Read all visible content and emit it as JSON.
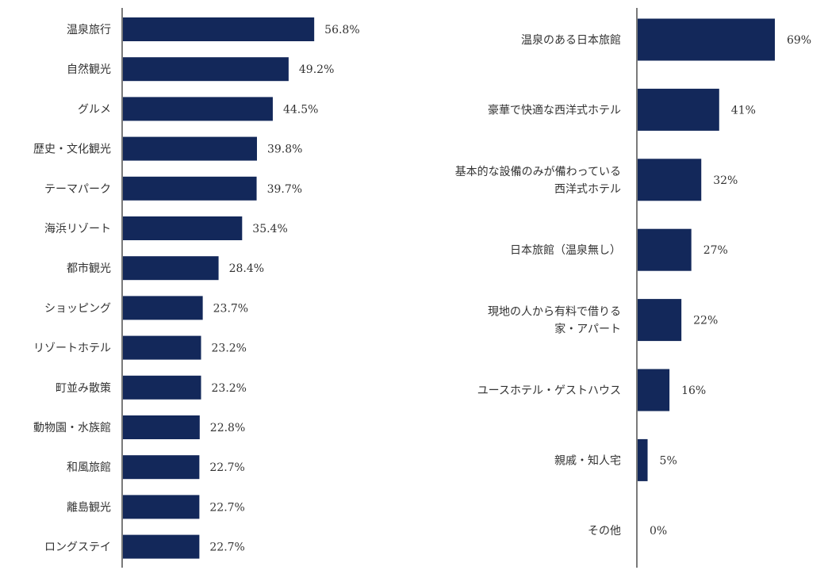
{
  "colors": {
    "bar": "#13285a",
    "axis": "#222222",
    "text": "#333333",
    "background": "#ffffff"
  },
  "chart_data": [
    {
      "type": "bar",
      "orientation": "horizontal",
      "title": "",
      "xlabel": "",
      "ylabel": "",
      "grid": false,
      "value_suffix": "%",
      "xlim": [
        0,
        100
      ],
      "categories": [
        "温泉旅行",
        "自然観光",
        "グルメ",
        "歴史・文化観光",
        "テーマパーク",
        "海浜リゾート",
        "都市観光",
        "ショッピング",
        "リゾートホテル",
        "町並み散策",
        "動物園・水族館",
        "和風旅館",
        "離島観光",
        "ロングステイ"
      ],
      "values": [
        56.8,
        49.2,
        44.5,
        39.8,
        39.7,
        35.4,
        28.4,
        23.7,
        23.2,
        23.2,
        22.8,
        22.7,
        22.7,
        22.7
      ],
      "labels": [
        "56.8%",
        "49.2%",
        "44.5%",
        "39.8%",
        "39.7%",
        "35.4%",
        "28.4%",
        "23.7%",
        "23.2%",
        "23.2%",
        "22.8%",
        "22.7%",
        "22.7%",
        "22.7%"
      ]
    },
    {
      "type": "bar",
      "orientation": "horizontal",
      "title": "",
      "xlabel": "",
      "ylabel": "",
      "grid": false,
      "value_suffix": "%",
      "xlim": [
        0,
        100
      ],
      "categories": [
        "温泉のある日本旅館",
        "豪華で快適な西洋式ホテル",
        "基本的な設備のみが備わっている\n西洋式ホテル",
        "日本旅館（温泉無し）",
        "現地の人から有料で借りる\n家・アパート",
        "ユースホテル・ゲストハウス",
        "親戚・知人宅",
        "その他"
      ],
      "values": [
        69,
        41,
        32,
        27,
        22,
        16,
        5,
        0
      ],
      "labels": [
        "69%",
        "41%",
        "32%",
        "27%",
        "22%",
        "16%",
        "5%",
        "0%"
      ]
    }
  ]
}
